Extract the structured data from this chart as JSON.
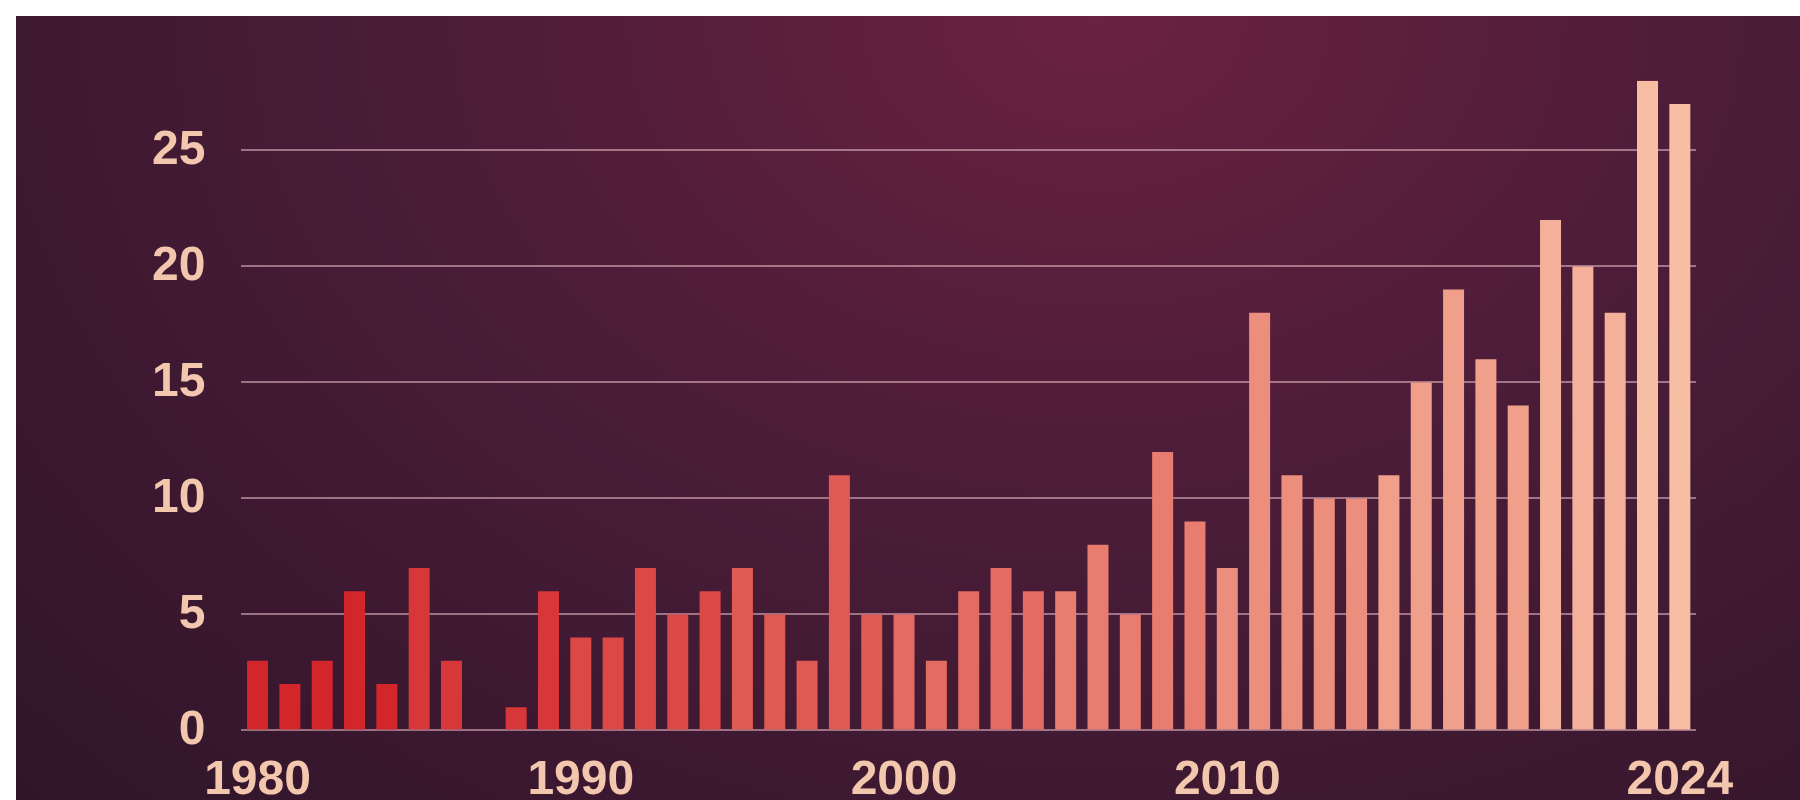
{
  "chart_data": {
    "type": "bar",
    "categories": [
      "1980",
      null,
      null,
      null,
      null,
      null,
      null,
      null,
      null,
      null,
      "1990",
      null,
      null,
      null,
      null,
      null,
      null,
      null,
      null,
      null,
      "2000",
      null,
      null,
      null,
      null,
      null,
      null,
      null,
      null,
      null,
      "2010",
      null,
      null,
      null,
      null,
      null,
      null,
      null,
      null,
      null,
      null,
      null,
      null,
      null,
      "2024"
    ],
    "values": [
      3,
      2,
      3,
      6,
      2,
      7,
      3,
      0,
      1,
      6,
      4,
      4,
      7,
      5,
      6,
      7,
      5,
      3,
      11,
      5,
      5,
      3,
      6,
      7,
      6,
      6,
      8,
      5,
      12,
      9,
      7,
      18,
      11,
      10,
      10,
      11,
      15,
      19,
      16,
      14,
      22,
      20,
      18,
      28,
      27
    ],
    "colors": [
      "#d3262a",
      "#d3262a",
      "#d3262a",
      "#d3262a",
      "#d3262a",
      "#d73738",
      "#d73738",
      "#d73738",
      "#d73738",
      "#d73738",
      "#db4946",
      "#db4946",
      "#db4946",
      "#db4946",
      "#db4946",
      "#df5a53",
      "#df5a53",
      "#df5a53",
      "#df5a53",
      "#df5a53",
      "#e36b61",
      "#e36b61",
      "#e36b61",
      "#e36b61",
      "#e36b61",
      "#e87c6f",
      "#e87c6f",
      "#e87c6f",
      "#e87c6f",
      "#e87c6f",
      "#ec8e7d",
      "#ec8e7d",
      "#ec8e7d",
      "#ec8e7d",
      "#ec8e7d",
      "#f09f8b",
      "#f09f8b",
      "#f09f8b",
      "#f09f8b",
      "#f09f8b",
      "#f4b099",
      "#f4b099",
      "#f4b099",
      "#f7bea4",
      "#f7bea4"
    ],
    "ylim": [
      0,
      28
    ],
    "yticks": [
      0,
      5,
      10,
      15,
      20,
      25
    ],
    "grid": "y",
    "legend": false
  }
}
